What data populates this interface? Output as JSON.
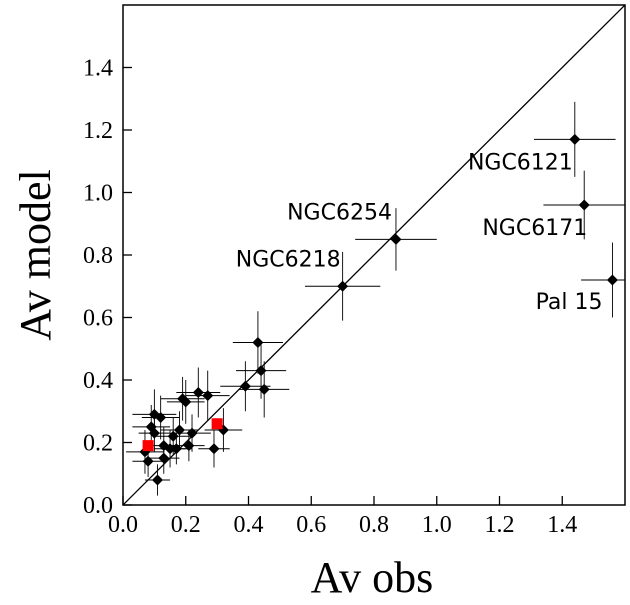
{
  "chart_data": {
    "type": "scatter",
    "xlabel": "Av obs",
    "ylabel": "Av model",
    "xlim": [
      0.0,
      1.6
    ],
    "ylim": [
      0.0,
      1.6
    ],
    "xticks": [
      "0.0",
      "0.2",
      "0.4",
      "0.6",
      "0.8",
      "1.0",
      "1.2",
      "1.4"
    ],
    "yticks": [
      "0.0",
      "0.2",
      "0.4",
      "0.6",
      "0.8",
      "1.0",
      "1.2",
      "1.4"
    ],
    "grid": false,
    "reference_line": {
      "type": "identity",
      "from": [
        0.0,
        0.0
      ],
      "to": [
        1.6,
        1.6
      ]
    },
    "series": [
      {
        "marker": "diamond",
        "color": "#000000",
        "points": [
          {
            "x": 0.07,
            "y": 0.17,
            "xerr": 0.06,
            "yerr": 0.07
          },
          {
            "x": 0.08,
            "y": 0.14,
            "xerr": 0.05,
            "yerr": 0.05
          },
          {
            "x": 0.09,
            "y": 0.25,
            "xerr": 0.06,
            "yerr": 0.07
          },
          {
            "x": 0.1,
            "y": 0.29,
            "xerr": 0.07,
            "yerr": 0.08
          },
          {
            "x": 0.1,
            "y": 0.23,
            "xerr": 0.05,
            "yerr": 0.06
          },
          {
            "x": 0.11,
            "y": 0.08,
            "xerr": 0.04,
            "yerr": 0.05
          },
          {
            "x": 0.12,
            "y": 0.28,
            "xerr": 0.06,
            "yerr": 0.07
          },
          {
            "x": 0.13,
            "y": 0.19,
            "xerr": 0.05,
            "yerr": 0.06
          },
          {
            "x": 0.13,
            "y": 0.15,
            "xerr": 0.05,
            "yerr": 0.05
          },
          {
            "x": 0.15,
            "y": 0.18,
            "xerr": 0.05,
            "yerr": 0.06
          },
          {
            "x": 0.16,
            "y": 0.22,
            "xerr": 0.06,
            "yerr": 0.06
          },
          {
            "x": 0.17,
            "y": 0.18,
            "xerr": 0.05,
            "yerr": 0.05
          },
          {
            "x": 0.18,
            "y": 0.24,
            "xerr": 0.06,
            "yerr": 0.06
          },
          {
            "x": 0.19,
            "y": 0.34,
            "xerr": 0.07,
            "yerr": 0.07
          },
          {
            "x": 0.2,
            "y": 0.33,
            "xerr": 0.06,
            "yerr": 0.07
          },
          {
            "x": 0.21,
            "y": 0.19,
            "xerr": 0.05,
            "yerr": 0.05
          },
          {
            "x": 0.22,
            "y": 0.23,
            "xerr": 0.06,
            "yerr": 0.06
          },
          {
            "x": 0.24,
            "y": 0.36,
            "xerr": 0.07,
            "yerr": 0.08
          },
          {
            "x": 0.27,
            "y": 0.35,
            "xerr": 0.07,
            "yerr": 0.08
          },
          {
            "x": 0.29,
            "y": 0.18,
            "xerr": 0.05,
            "yerr": 0.06
          },
          {
            "x": 0.32,
            "y": 0.24,
            "xerr": 0.06,
            "yerr": 0.07
          },
          {
            "x": 0.39,
            "y": 0.38,
            "xerr": 0.08,
            "yerr": 0.08
          },
          {
            "x": 0.43,
            "y": 0.52,
            "xerr": 0.08,
            "yerr": 0.1
          },
          {
            "x": 0.44,
            "y": 0.43,
            "xerr": 0.08,
            "yerr": 0.09
          },
          {
            "x": 0.45,
            "y": 0.37,
            "xerr": 0.08,
            "yerr": 0.09
          },
          {
            "x": 0.7,
            "y": 0.7,
            "xerr": 0.12,
            "yerr": 0.11,
            "label": "NGC6218"
          },
          {
            "x": 0.87,
            "y": 0.85,
            "xerr": 0.13,
            "yerr": 0.1,
            "label": "NGC6254"
          },
          {
            "x": 1.44,
            "y": 1.17,
            "xerr": 0.13,
            "yerr": 0.12,
            "label": "NGC6121"
          },
          {
            "x": 1.47,
            "y": 0.96,
            "xerr": 0.13,
            "yerr": 0.11,
            "label": "NGC6171"
          },
          {
            "x": 1.56,
            "y": 0.72,
            "xerr": 0.1,
            "yerr": 0.12,
            "label": "Pal 15"
          }
        ]
      },
      {
        "marker": "square",
        "color": "#ff0000",
        "points": [
          {
            "x": 0.08,
            "y": 0.19
          },
          {
            "x": 0.3,
            "y": 0.26
          }
        ]
      }
    ]
  }
}
